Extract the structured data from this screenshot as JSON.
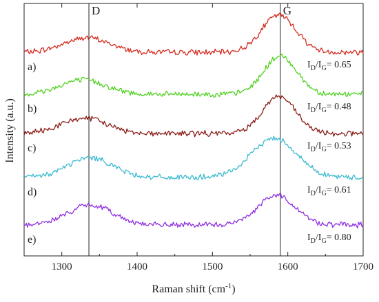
{
  "chart_data": {
    "type": "line",
    "title": "",
    "xlabel": "Raman shift (cm",
    "xlabel_superscript": "-1",
    "xlabel_suffix": ")",
    "ylabel": "Intensity (a.u.)",
    "xlim": [
      1250,
      1700
    ],
    "x_ticks": [
      "1300",
      "1400",
      "1500",
      "1600",
      "1700"
    ],
    "y_ticks": [],
    "grid": false,
    "legend": "none",
    "reference_lines": [
      {
        "label": "D",
        "x": 1336
      },
      {
        "label": "G",
        "x": 1590
      }
    ],
    "series": [
      {
        "label": "a)",
        "ratio_text": "= 0.65",
        "ratio_value": 0.65,
        "color": "#d42a1e",
        "d_peak": {
          "center": 1333,
          "width": 30,
          "height": 0.35
        },
        "g_peak": {
          "center": 1588,
          "width": 23,
          "height": 0.9
        }
      },
      {
        "label": "b)",
        "ratio_text": "= 0.48",
        "ratio_value": 0.48,
        "color": "#4fd11f",
        "d_peak": {
          "center": 1328,
          "width": 30,
          "height": 0.35
        },
        "g_peak": {
          "center": 1590,
          "width": 22,
          "height": 0.92
        }
      },
      {
        "label": "c)",
        "ratio_text": "= 0.53",
        "ratio_value": 0.53,
        "color": "#8a1a14",
        "d_peak": {
          "center": 1330,
          "width": 30,
          "height": 0.37
        },
        "g_peak": {
          "center": 1588,
          "width": 22,
          "height": 0.9
        }
      },
      {
        "label": "d)",
        "ratio_text": "= 0.61",
        "ratio_value": 0.61,
        "color": "#3bbad0",
        "d_peak": {
          "center": 1338,
          "width": 30,
          "height": 0.48
        },
        "g_peak": {
          "center": 1582,
          "width": 30,
          "height": 0.95
        }
      },
      {
        "label": "e)",
        "ratio_text": "= 0.80",
        "ratio_value": 0.8,
        "color": "#8f2fe0",
        "d_peak": {
          "center": 1338,
          "width": 30,
          "height": 0.48
        },
        "g_peak": {
          "center": 1585,
          "width": 25,
          "height": 0.72
        }
      }
    ],
    "ratio_prefix": "I",
    "ratio_sub_d": "D",
    "ratio_sub_g": "G"
  }
}
